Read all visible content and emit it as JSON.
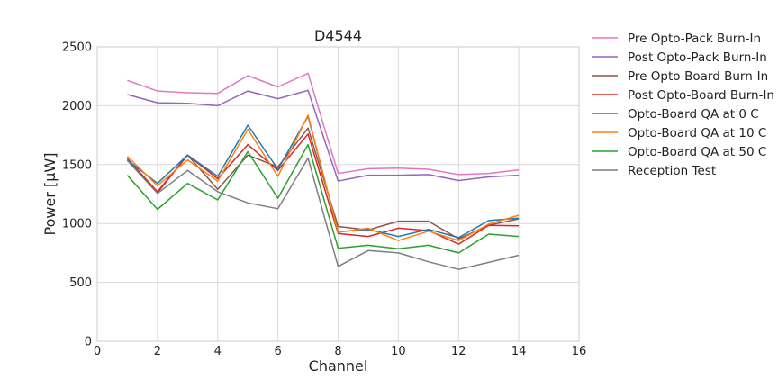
{
  "chart_data": {
    "type": "line",
    "title": "D4544",
    "xlabel": "Channel",
    "ylabel": "Power [μW]",
    "xlim": [
      0,
      16
    ],
    "ylim": [
      0,
      2500
    ],
    "xticks": [
      0,
      2,
      4,
      6,
      8,
      10,
      12,
      14,
      16
    ],
    "yticks": [
      0,
      500,
      1000,
      1500,
      2000,
      2500
    ],
    "grid": true,
    "legend_position": "outside-top-right",
    "x": [
      1,
      2,
      3,
      4,
      5,
      6,
      7,
      8,
      9,
      10,
      11,
      12,
      13,
      14
    ],
    "series": [
      {
        "name": "Pre Opto-Pack Burn-In",
        "color": "#e377c2",
        "values": [
          2215,
          2125,
          2110,
          2105,
          2255,
          2160,
          2275,
          1425,
          1465,
          1470,
          1460,
          1415,
          1425,
          1455
        ]
      },
      {
        "name": "Post Opto-Pack Burn-In",
        "color": "#9467bd",
        "values": [
          2095,
          2025,
          2020,
          2000,
          2125,
          2060,
          2130,
          1360,
          1410,
          1410,
          1415,
          1365,
          1395,
          1410
        ]
      },
      {
        "name": "Pre Opto-Board Burn-In",
        "color": "#8c564b",
        "values": [
          1550,
          1260,
          1580,
          1290,
          1580,
          1480,
          1810,
          975,
          945,
          1020,
          1020,
          870,
          985,
          1040
        ]
      },
      {
        "name": "Post Opto-Board Burn-In",
        "color": "#d62728",
        "values": [
          1550,
          1270,
          1580,
          1380,
          1670,
          1450,
          1760,
          915,
          890,
          960,
          940,
          825,
          985,
          980
        ]
      },
      {
        "name": "Opto-Board QA at 0 C",
        "color": "#1f77b4",
        "values": [
          1540,
          1340,
          1580,
          1400,
          1835,
          1460,
          1910,
          930,
          950,
          890,
          950,
          880,
          1025,
          1045
        ]
      },
      {
        "name": "Opto-Board QA at 10 C",
        "color": "#ff7f0e",
        "values": [
          1570,
          1320,
          1540,
          1360,
          1800,
          1400,
          1920,
          925,
          960,
          855,
          935,
          855,
          995,
          1070
        ]
      },
      {
        "name": "Opto-Board QA at 50 C",
        "color": "#2ca02c",
        "values": [
          1410,
          1120,
          1340,
          1200,
          1610,
          1215,
          1670,
          790,
          815,
          785,
          815,
          750,
          910,
          890
        ]
      },
      {
        "name": "Reception Test",
        "color": "#7f7f7f",
        "values": [
          1535,
          1255,
          1450,
          1270,
          1175,
          1125,
          1555,
          635,
          770,
          750,
          675,
          610,
          670,
          730
        ]
      }
    ]
  }
}
